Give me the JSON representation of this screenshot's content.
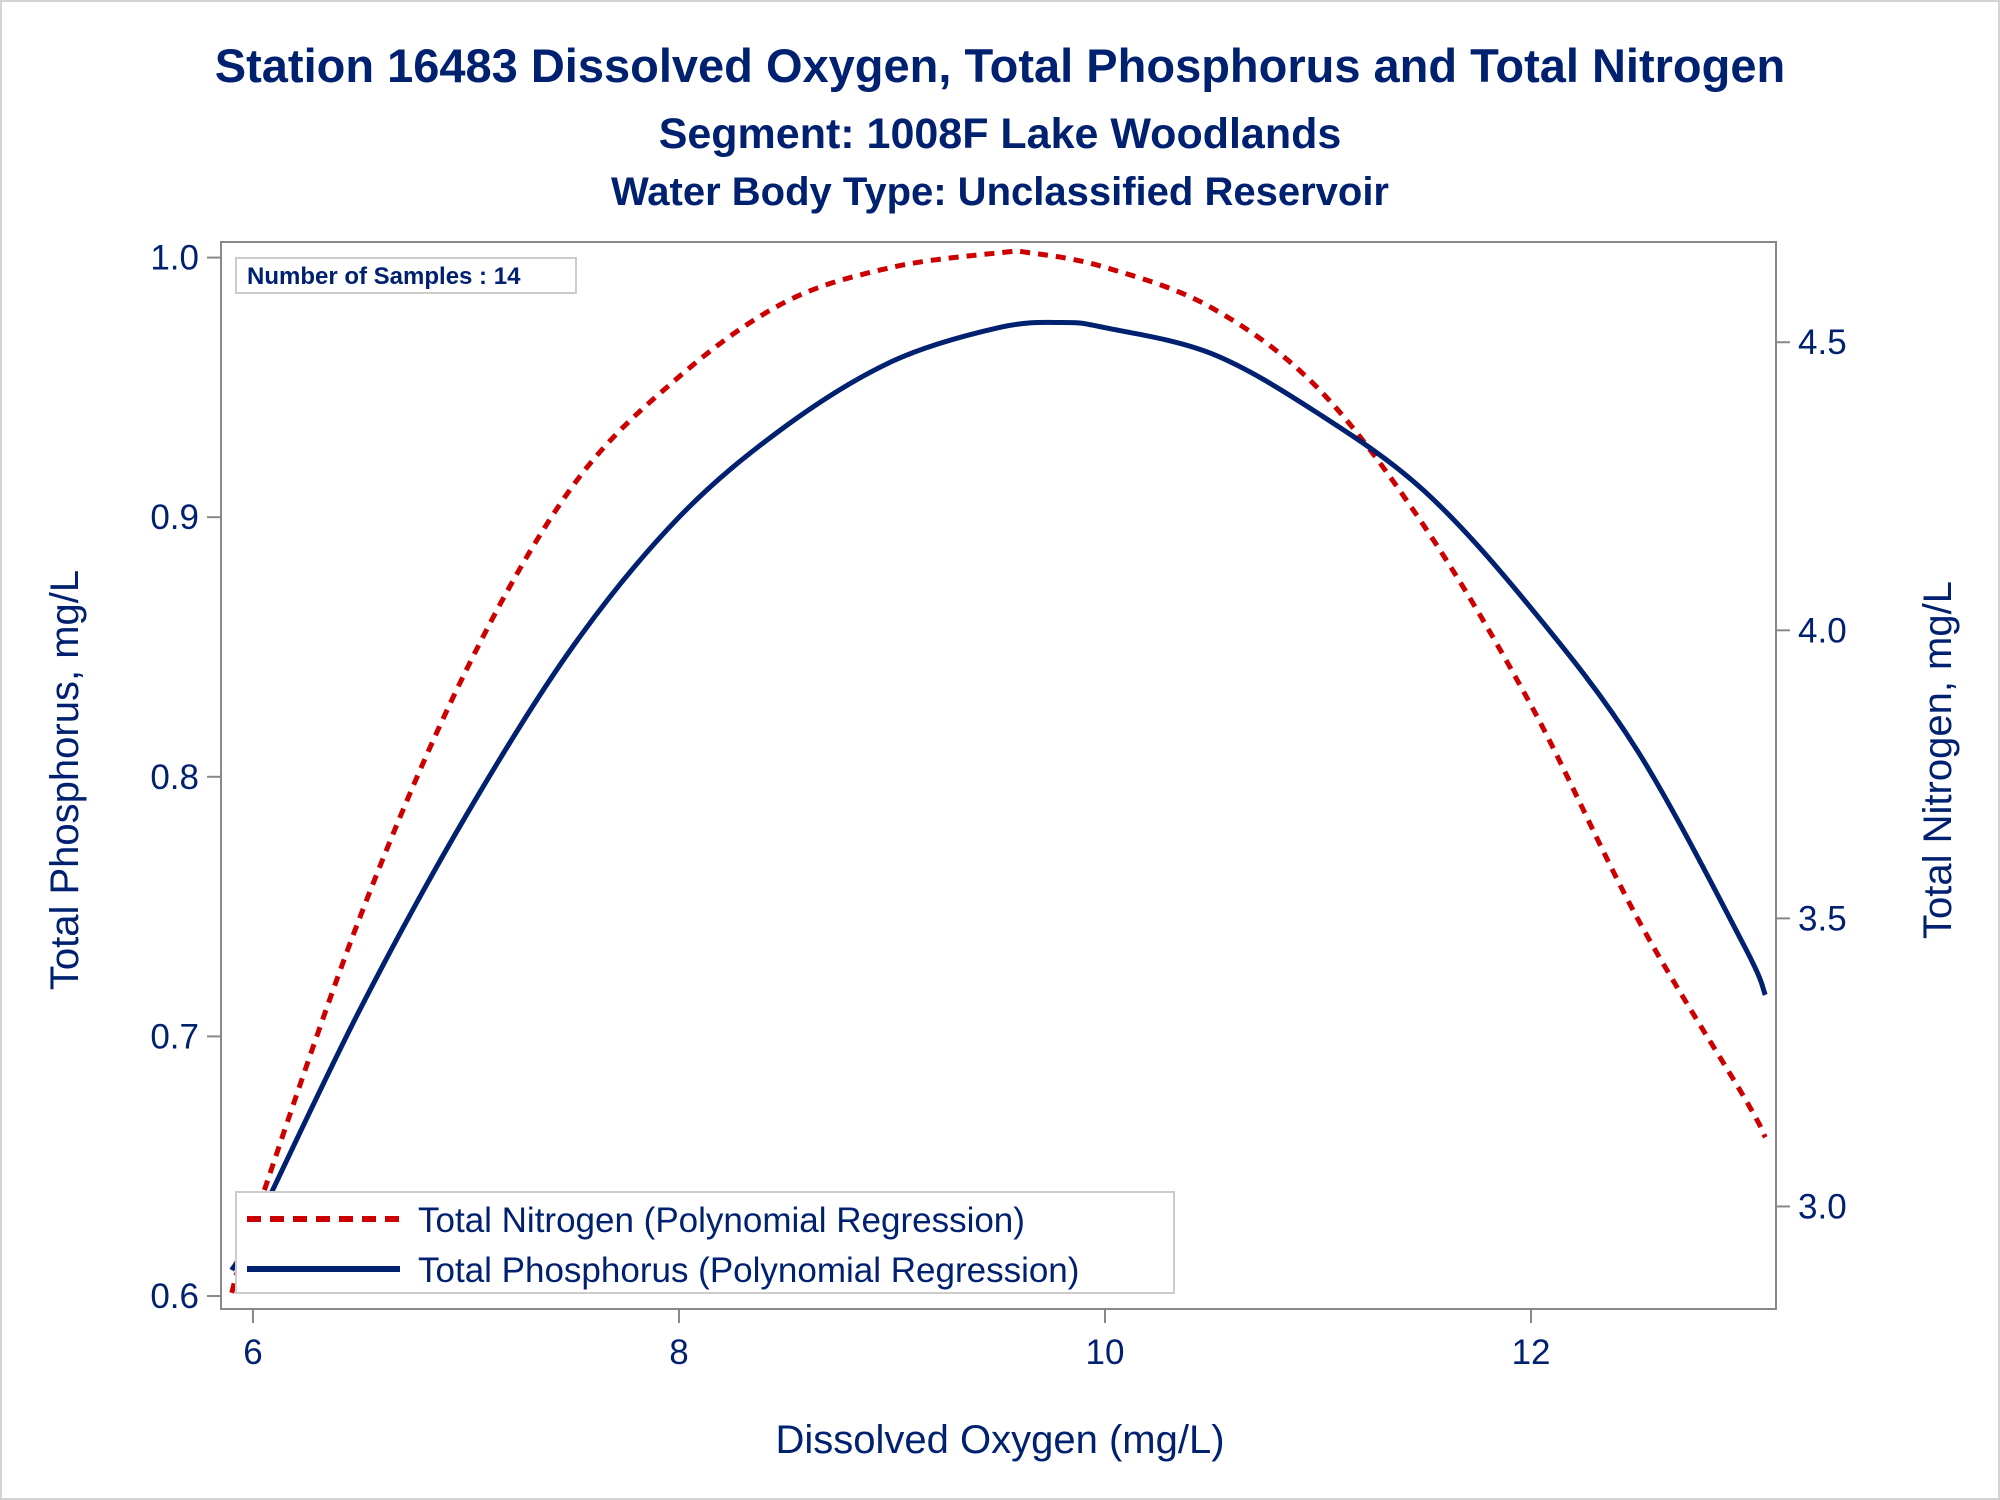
{
  "chart_data": {
    "type": "line",
    "title": "Station 16483  Dissolved Oxygen, Total Phosphorus and Total Nitrogen",
    "subtitle": "Segment: 1008F  Lake Woodlands",
    "subtitle2": "Water Body Type: Unclassified Reservoir",
    "xlabel": "Dissolved Oxygen (mg/L)",
    "ylabel": "Total Phosphorus, mg/L",
    "y2label": "Total Nitrogen, mg/L",
    "xlim": [
      5.85,
      13.15
    ],
    "ylim": [
      0.595,
      1.006
    ],
    "y2lim": [
      2.822,
      4.674
    ],
    "xticks": [
      "6",
      "8",
      "10",
      "12"
    ],
    "yticks": [
      "0.6",
      "0.7",
      "0.8",
      "0.9",
      "1.0"
    ],
    "y2ticks": [
      "3.0",
      "3.5",
      "4.0",
      "4.5"
    ],
    "annotation": "Number of Samples : 14",
    "legend_position": "bottom-left",
    "colors": {
      "nitrogen": "#cc0000",
      "phosphorus": "#002070",
      "text": "#002070",
      "axis": "#888888"
    },
    "series": [
      {
        "name": "Total Nitrogen (Polynomial Regression)",
        "axis": "y2",
        "style": "dashed",
        "x": [
          5.9,
          6.0,
          6.5,
          7.0,
          7.5,
          8.0,
          8.5,
          9.0,
          9.5,
          9.65,
          10.0,
          10.5,
          11.0,
          11.5,
          12.0,
          12.5,
          13.0,
          13.1
        ],
        "y": [
          2.85,
          2.97,
          3.5,
          3.93,
          4.25,
          4.44,
          4.57,
          4.63,
          4.655,
          4.655,
          4.63,
          4.56,
          4.42,
          4.18,
          3.87,
          3.5,
          3.19,
          3.12
        ]
      },
      {
        "name": "Total Phosphorus (Polynomial Regression)",
        "axis": "y",
        "style": "solid",
        "x": [
          5.9,
          6.0,
          6.5,
          7.0,
          7.5,
          8.0,
          8.5,
          9.0,
          9.5,
          9.8,
          10.0,
          10.5,
          11.0,
          11.5,
          12.0,
          12.5,
          13.0,
          13.1
        ],
        "y": [
          0.61,
          0.625,
          0.71,
          0.785,
          0.85,
          0.9,
          0.935,
          0.96,
          0.973,
          0.975,
          0.973,
          0.963,
          0.94,
          0.91,
          0.865,
          0.81,
          0.735,
          0.716
        ]
      }
    ]
  }
}
